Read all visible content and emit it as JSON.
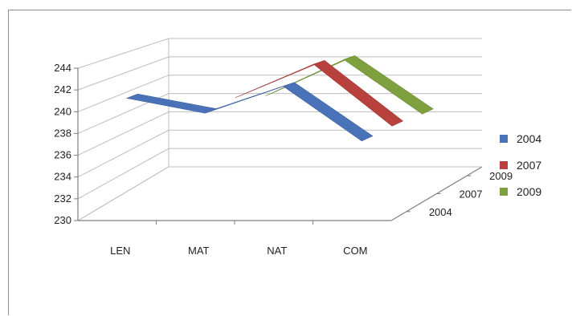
{
  "chart_data": {
    "type": "line",
    "variant": "3d-line",
    "categories": [
      "LEN",
      "MAT",
      "NAT",
      "COM"
    ],
    "depth_categories": [
      "2004",
      "2007",
      "2009"
    ],
    "series": [
      {
        "name": "2004",
        "color": "#4a72b8",
        "values": [
          240.9,
          239.5,
          242.0,
          236.9
        ]
      },
      {
        "name": "2007",
        "color": "#b9413d",
        "values": [
          null,
          239.8,
          243.1,
          237.0
        ]
      },
      {
        "name": "2009",
        "color": "#7ea03f",
        "values": [
          null,
          238.7,
          242.5,
          236.8
        ]
      }
    ],
    "y_ticks": [
      "230",
      "232",
      "234",
      "236",
      "238",
      "240",
      "242",
      "244"
    ],
    "ylim": [
      230,
      244
    ],
    "legend": {
      "position": "right",
      "items": [
        "2004",
        "2007",
        "2009"
      ]
    },
    "grid": true
  }
}
